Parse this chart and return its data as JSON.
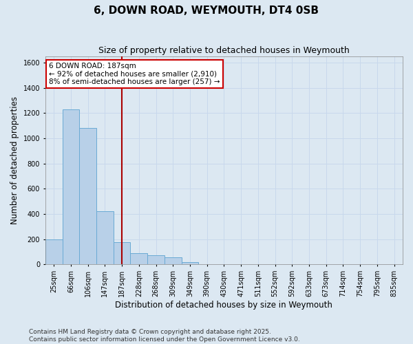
{
  "title": "6, DOWN ROAD, WEYMOUTH, DT4 0SB",
  "subtitle": "Size of property relative to detached houses in Weymouth",
  "xlabel": "Distribution of detached houses by size in Weymouth",
  "ylabel": "Number of detached properties",
  "categories": [
    "25sqm",
    "66sqm",
    "106sqm",
    "147sqm",
    "187sqm",
    "228sqm",
    "268sqm",
    "309sqm",
    "349sqm",
    "390sqm",
    "430sqm",
    "471sqm",
    "511sqm",
    "552sqm",
    "592sqm",
    "633sqm",
    "673sqm",
    "714sqm",
    "754sqm",
    "795sqm",
    "835sqm"
  ],
  "values": [
    200,
    1230,
    1080,
    420,
    175,
    90,
    70,
    55,
    20,
    0,
    0,
    0,
    0,
    0,
    0,
    0,
    0,
    0,
    0,
    0,
    0
  ],
  "bar_color": "#b8d0e8",
  "bar_edge_color": "#6aaad4",
  "vline_x_index": 4,
  "vline_color": "#aa0000",
  "annotation_text": "6 DOWN ROAD: 187sqm\n← 92% of detached houses are smaller (2,910)\n8% of semi-detached houses are larger (257) →",
  "annotation_box_facecolor": "#ffffff",
  "annotation_box_edgecolor": "#cc0000",
  "annotation_text_color": "#000000",
  "ylim": [
    0,
    1650
  ],
  "yticks": [
    0,
    200,
    400,
    600,
    800,
    1000,
    1200,
    1400,
    1600
  ],
  "grid_color": "#c8d8ec",
  "bg_color": "#dce8f2",
  "title_fontsize": 11,
  "subtitle_fontsize": 9,
  "tick_fontsize": 7,
  "label_fontsize": 8.5,
  "annotation_fontsize": 7.5,
  "footer_line1": "Contains HM Land Registry data © Crown copyright and database right 2025.",
  "footer_line2": "Contains public sector information licensed under the Open Government Licence v3.0.",
  "footer_fontsize": 6.5
}
